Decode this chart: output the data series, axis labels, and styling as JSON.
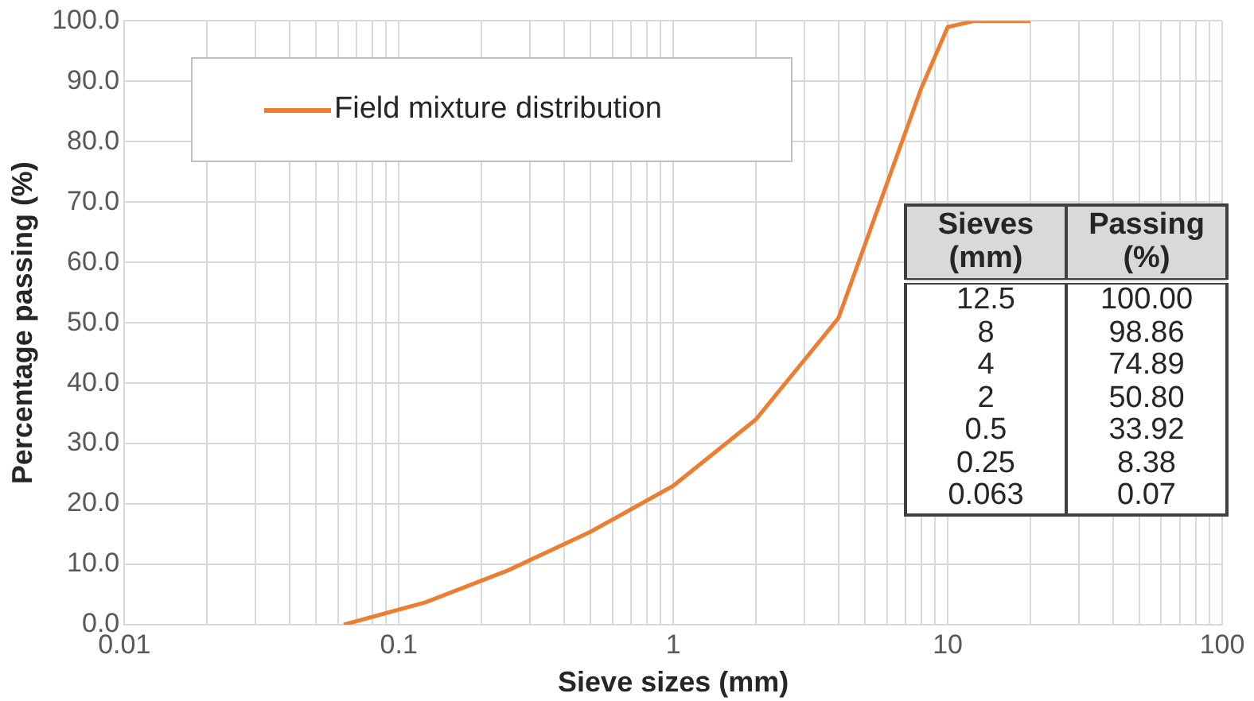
{
  "chart_data": {
    "type": "line",
    "xlabel": "Sieve sizes (mm)",
    "ylabel": "Percentage passing (%)",
    "x": [
      0.063,
      0.125,
      0.25,
      0.5,
      1,
      2,
      4,
      8,
      10,
      12.5,
      20
    ],
    "series": [
      {
        "name": "Field mixture distribution",
        "color": "#ed7d31",
        "values": [
          0,
          3.7,
          9,
          15.4,
          23,
          34,
          50.8,
          88.8,
          99,
          100,
          100
        ]
      }
    ],
    "log": "x",
    "xlim": [
      0.01,
      100
    ],
    "xticks": [
      {
        "value": 0.01,
        "label": "0.01"
      },
      {
        "value": 0.02,
        "label": null
      },
      {
        "value": 0.03,
        "label": null
      },
      {
        "value": 0.04,
        "label": null
      },
      {
        "value": 0.05,
        "label": null
      },
      {
        "value": 0.06,
        "label": null
      },
      {
        "value": 0.07,
        "label": null
      },
      {
        "value": 0.08,
        "label": null
      },
      {
        "value": 0.09,
        "label": null
      },
      {
        "value": 0.1,
        "label": "0.1"
      },
      {
        "value": 0.2,
        "label": null
      },
      {
        "value": 0.3,
        "label": null
      },
      {
        "value": 0.4,
        "label": null
      },
      {
        "value": 0.5,
        "label": null
      },
      {
        "value": 0.6,
        "label": null
      },
      {
        "value": 0.7,
        "label": null
      },
      {
        "value": 0.8,
        "label": null
      },
      {
        "value": 0.9,
        "label": null
      },
      {
        "value": 1,
        "label": "1"
      },
      {
        "value": 2,
        "label": null
      },
      {
        "value": 3,
        "label": null
      },
      {
        "value": 4,
        "label": null
      },
      {
        "value": 5,
        "label": null
      },
      {
        "value": 6,
        "label": null
      },
      {
        "value": 7,
        "label": null
      },
      {
        "value": 8,
        "label": null
      },
      {
        "value": 9,
        "label": null
      },
      {
        "value": 10,
        "label": "10"
      },
      {
        "value": 20,
        "label": null
      },
      {
        "value": 30,
        "label": null
      },
      {
        "value": 40,
        "label": null
      },
      {
        "value": 50,
        "label": null
      },
      {
        "value": 60,
        "label": null
      },
      {
        "value": 70,
        "label": null
      },
      {
        "value": 80,
        "label": null
      },
      {
        "value": 90,
        "label": null
      },
      {
        "value": 100,
        "label": "100"
      }
    ],
    "ylim": [
      0,
      100
    ],
    "yticks": [
      {
        "value": 0,
        "label": "0.0"
      },
      {
        "value": 10,
        "label": "10.0"
      },
      {
        "value": 20,
        "label": "20.0"
      },
      {
        "value": 30,
        "label": "30.0"
      },
      {
        "value": 40,
        "label": "40.0"
      },
      {
        "value": 50,
        "label": "50.0"
      },
      {
        "value": 60,
        "label": "60.0"
      },
      {
        "value": 70,
        "label": "70.0"
      },
      {
        "value": 80,
        "label": "80.0"
      },
      {
        "value": 90,
        "label": "90.0"
      },
      {
        "value": 100,
        "label": "100.0"
      }
    ],
    "grid": true,
    "legend": "top left",
    "marker": "none",
    "line_style": "solid",
    "annotations": [
      "Sieves (mm)",
      "Passing (%)",
      "12.5",
      "100.00",
      "8",
      "98.86",
      "4",
      "74.89",
      "2",
      "50.80",
      "0.5",
      "33.92",
      "0.25",
      "8.38",
      "0.063",
      "0.07"
    ]
  }
}
